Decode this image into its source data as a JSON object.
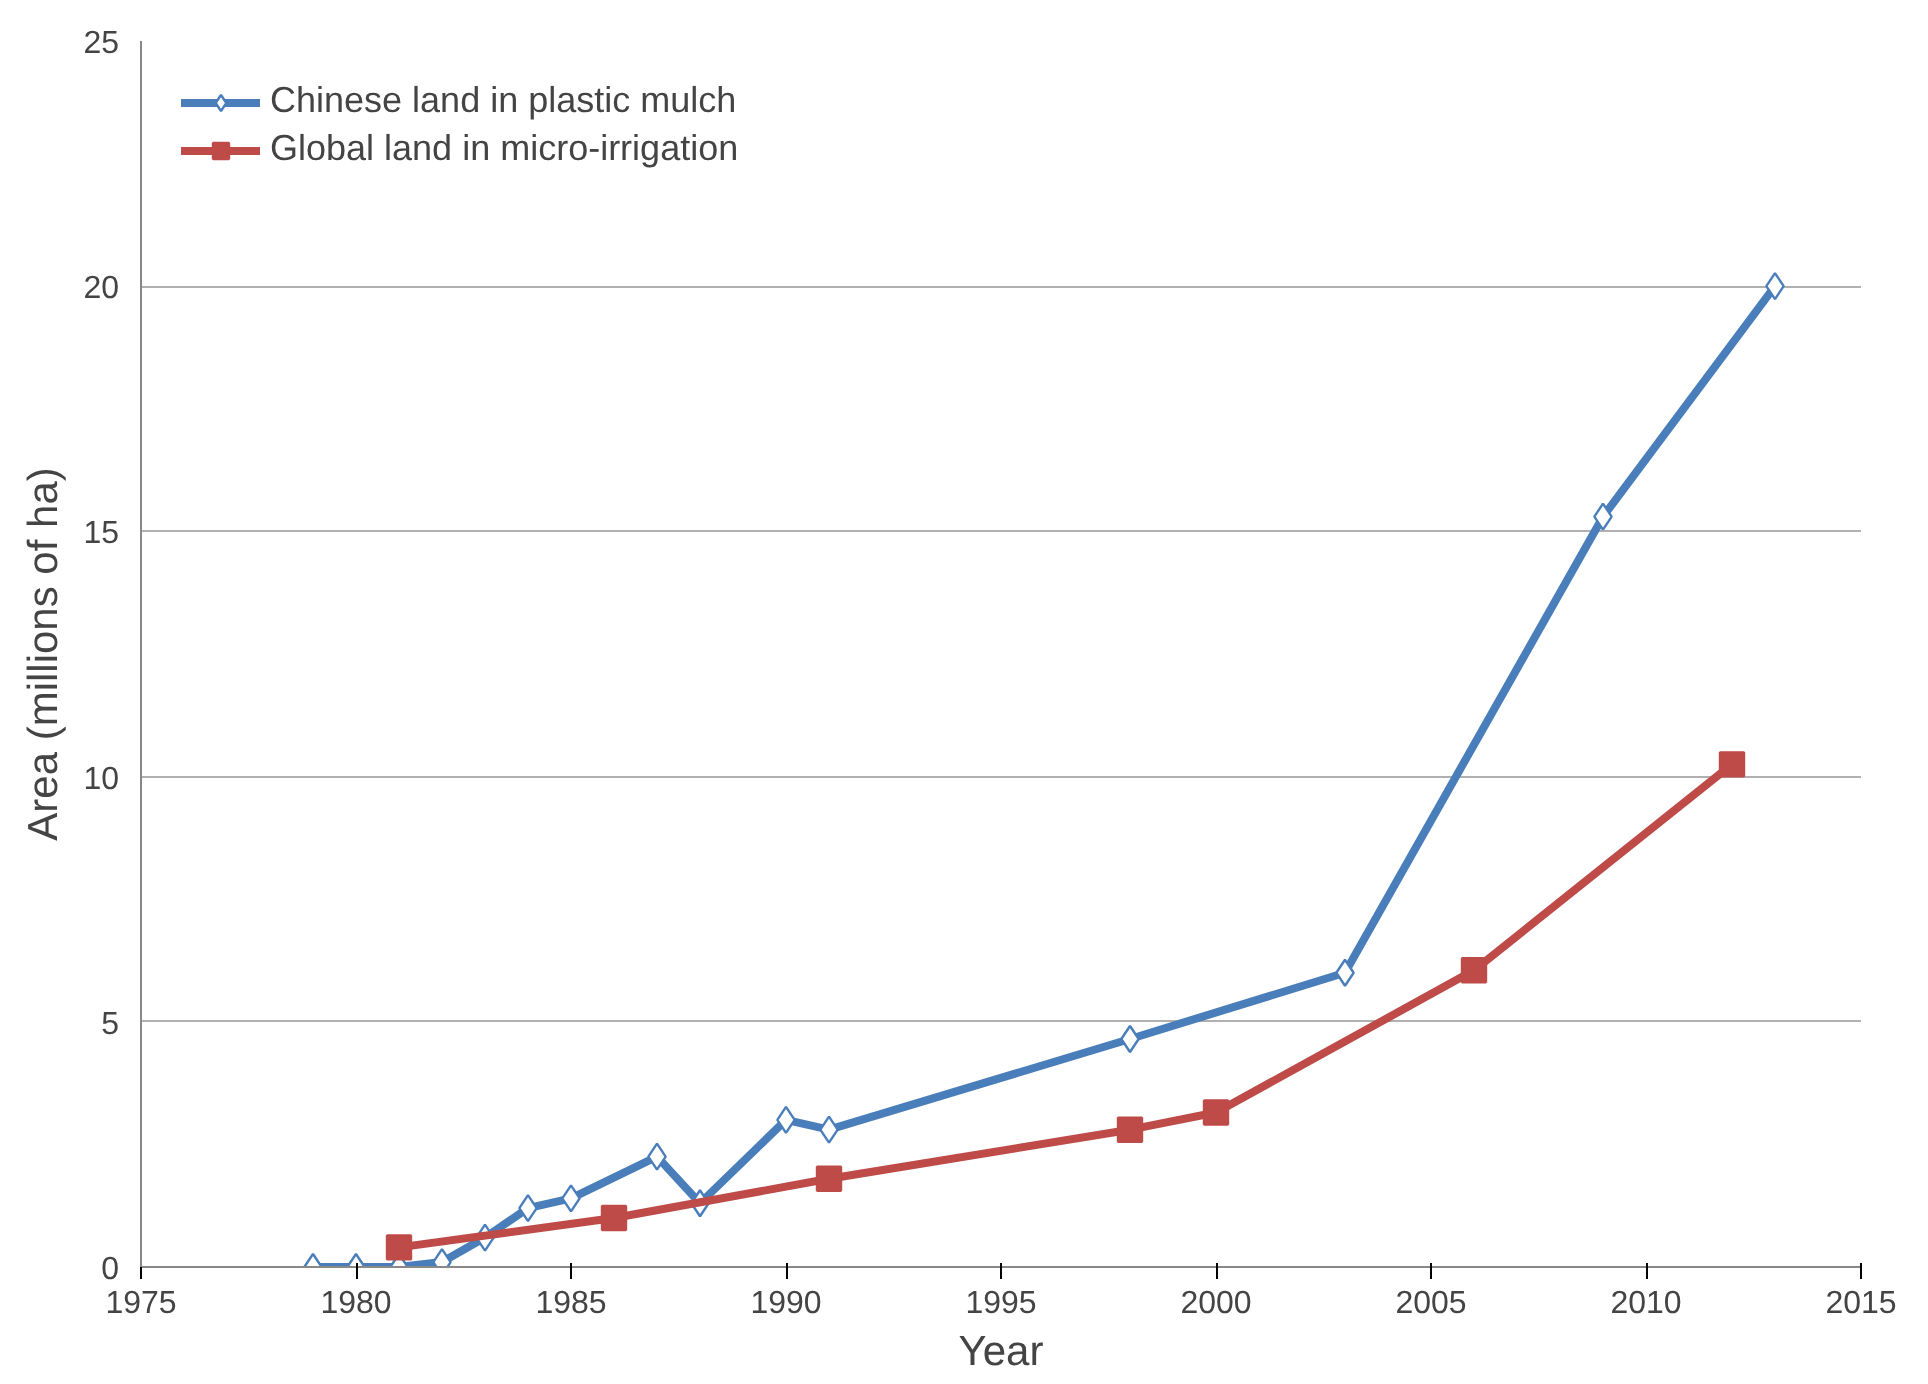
{
  "chart_data": {
    "type": "line",
    "xlabel": "Year",
    "ylabel": "Area (millions of ha)",
    "xlim": [
      1975,
      2015
    ],
    "xticks": [
      1975,
      1980,
      1985,
      1990,
      1995,
      2000,
      2005,
      2010,
      2015
    ],
    "ylim": [
      0,
      25
    ],
    "yticks": [
      0,
      5,
      10,
      15,
      20,
      25
    ],
    "grid": "y",
    "legend": "top left",
    "line_style": "solid",
    "series": [
      {
        "name": "Chinese land in plastic mulch",
        "color": "#4a7ebb",
        "marker": "diamond",
        "x": [
          1979,
          1980,
          1981,
          1982,
          1983,
          1984,
          1985,
          1987,
          1988,
          1990,
          1991,
          1998,
          2003,
          2009,
          2013
        ],
        "values": [
          0,
          0,
          0,
          0.1,
          0.6,
          1.2,
          1.4,
          2.25,
          1.3,
          3.0,
          2.8,
          4.65,
          6.0,
          15.3,
          20.0
        ]
      },
      {
        "name": "Global land in micro-irrigation",
        "color": "#be4b48",
        "marker": "square",
        "x": [
          1981,
          1986,
          1991,
          1998,
          2000,
          2006,
          2012
        ],
        "values": [
          0.4,
          1.0,
          1.8,
          2.8,
          3.15,
          6.05,
          10.25
        ]
      }
    ]
  }
}
